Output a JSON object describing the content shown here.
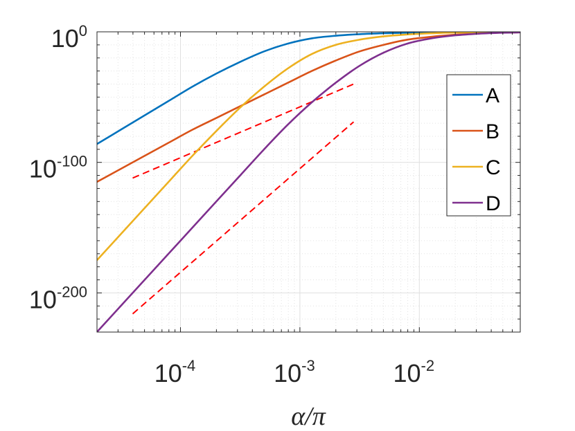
{
  "chart_data": {
    "type": "line",
    "scale": {
      "x": "log",
      "y": "log"
    },
    "xlabel": "α/π",
    "ylabel": "",
    "xlim": [
      2e-05,
      0.07
    ],
    "ylim_log10": [
      -230,
      0
    ],
    "grid": true,
    "minor_grid": true,
    "legend_position": "upper-right",
    "x_ticks": [
      {
        "base": "10",
        "exp": "-4",
        "value": 0.0001
      },
      {
        "base": "10",
        "exp": "-3",
        "value": 0.001
      },
      {
        "base": "10",
        "exp": "-2",
        "value": 0.01
      }
    ],
    "y_ticks": [
      {
        "base": "10",
        "exp": "0",
        "log10": 0
      },
      {
        "base": "10",
        "exp": "-100",
        "log10": -100
      },
      {
        "base": "10",
        "exp": "-200",
        "log10": -200
      }
    ],
    "series": [
      {
        "name": "A",
        "color": "#0072BD",
        "style": "solid",
        "points": [
          [
            -4.7,
            -86
          ],
          [
            -4.5,
            -75
          ],
          [
            -4.3,
            -64
          ],
          [
            -4.1,
            -53
          ],
          [
            -3.9,
            -42
          ],
          [
            -3.7,
            -32
          ],
          [
            -3.5,
            -23
          ],
          [
            -3.3,
            -15
          ],
          [
            -3.1,
            -9
          ],
          [
            -2.9,
            -5
          ],
          [
            -2.7,
            -3
          ],
          [
            -2.5,
            -1.8
          ],
          [
            -2.3,
            -1.1
          ],
          [
            -2.1,
            -0.7
          ],
          [
            -1.9,
            -0.4
          ],
          [
            -1.7,
            -0.25
          ],
          [
            -1.5,
            -0.12
          ],
          [
            -1.3,
            -0.06
          ],
          [
            -1.15,
            -0.04
          ]
        ]
      },
      {
        "name": "B",
        "color": "#D95319",
        "style": "solid",
        "points": [
          [
            -4.7,
            -115
          ],
          [
            -4.5,
            -105
          ],
          [
            -4.3,
            -95
          ],
          [
            -4.1,
            -85
          ],
          [
            -3.9,
            -75
          ],
          [
            -3.7,
            -66
          ],
          [
            -3.5,
            -57
          ],
          [
            -3.3,
            -48
          ],
          [
            -3.1,
            -39
          ],
          [
            -2.9,
            -30
          ],
          [
            -2.7,
            -22
          ],
          [
            -2.5,
            -15
          ],
          [
            -2.3,
            -10
          ],
          [
            -2.1,
            -6
          ],
          [
            -1.9,
            -3.8
          ],
          [
            -1.7,
            -2.2
          ],
          [
            -1.5,
            -1.2
          ],
          [
            -1.3,
            -0.6
          ],
          [
            -1.15,
            -0.4
          ]
        ]
      },
      {
        "name": "C",
        "color": "#EDB120",
        "style": "solid",
        "points": [
          [
            -4.7,
            -175
          ],
          [
            -4.5,
            -155
          ],
          [
            -4.3,
            -135
          ],
          [
            -4.1,
            -115
          ],
          [
            -3.9,
            -95
          ],
          [
            -3.7,
            -76
          ],
          [
            -3.5,
            -58
          ],
          [
            -3.3,
            -42
          ],
          [
            -3.1,
            -28
          ],
          [
            -2.9,
            -17
          ],
          [
            -2.7,
            -10
          ],
          [
            -2.5,
            -6
          ],
          [
            -2.3,
            -3.5
          ],
          [
            -2.1,
            -2
          ],
          [
            -1.9,
            -1.1
          ],
          [
            -1.7,
            -0.6
          ],
          [
            -1.5,
            -0.3
          ],
          [
            -1.3,
            -0.15
          ],
          [
            -1.15,
            -0.1
          ]
        ]
      },
      {
        "name": "D",
        "color": "#7E2F8E",
        "style": "solid",
        "points": [
          [
            -4.7,
            -230
          ],
          [
            -4.5,
            -210
          ],
          [
            -4.3,
            -190
          ],
          [
            -4.1,
            -170
          ],
          [
            -3.9,
            -150
          ],
          [
            -3.7,
            -130
          ],
          [
            -3.5,
            -110
          ],
          [
            -3.3,
            -90
          ],
          [
            -3.1,
            -71
          ],
          [
            -2.9,
            -54
          ],
          [
            -2.7,
            -39
          ],
          [
            -2.5,
            -26
          ],
          [
            -2.3,
            -16
          ],
          [
            -2.1,
            -9
          ],
          [
            -1.9,
            -5
          ],
          [
            -1.7,
            -2.7
          ],
          [
            -1.5,
            -1.4
          ],
          [
            -1.3,
            -0.7
          ],
          [
            -1.15,
            -0.45
          ]
        ]
      }
    ],
    "reference_lines": [
      {
        "name": "ref-b",
        "color": "#FF0000",
        "style": "dashed",
        "points": [
          [
            -4.4,
            -112
          ],
          [
            -2.55,
            -40
          ]
        ]
      },
      {
        "name": "ref-d",
        "color": "#FF0000",
        "style": "dashed",
        "points": [
          [
            -4.4,
            -216
          ],
          [
            -2.55,
            -69
          ]
        ]
      }
    ]
  }
}
